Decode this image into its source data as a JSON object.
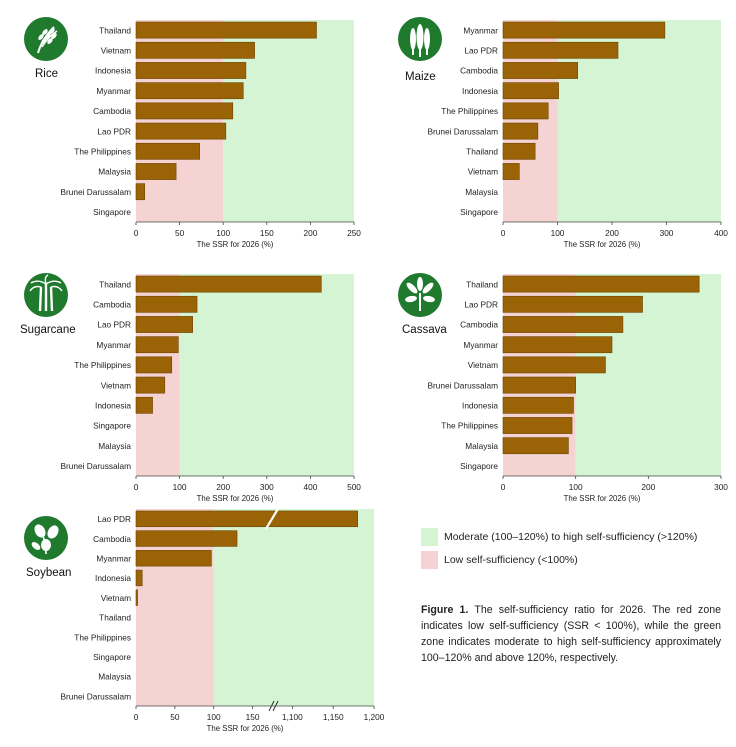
{
  "colors": {
    "bar": "#9a6306",
    "bar_stroke": "#6e4604",
    "high_zone": "#d4f4d3",
    "low_zone": "#f5d3d3",
    "icon_bg": "#1f7a2e",
    "axis": "#444444"
  },
  "legend": {
    "high": "Moderate (100–120%) to high self-sufficiency (>120%)",
    "low": "Low self-sufficiency (<100%)"
  },
  "caption": {
    "label": "Figure 1.",
    "text": " The self-sufficiency ratio for 2026. The red zone indicates low self-sufficiency (SSR < 100%), while the green zone indicates moderate to high self-sufficiency approximately 100–120% and above 120%, respectively."
  },
  "chart_data": [
    {
      "type": "bar",
      "orientation": "horizontal",
      "title": "Rice",
      "icon": "rice-icon",
      "xlabel": "The SSR for 2026 (%)",
      "xlim": [
        0,
        250
      ],
      "xticks": [
        0,
        50,
        100,
        150,
        200,
        250
      ],
      "categories": [
        "Thailand",
        "Vietnam",
        "Indonesia",
        "Myanmar",
        "Cambodia",
        "Lao PDR",
        "The Philippines",
        "Malaysia",
        "Brunei Darussalam",
        "Singapore"
      ],
      "values": [
        207,
        136,
        126,
        123,
        111,
        103,
        73,
        46,
        10,
        0
      ],
      "threshold": 100
    },
    {
      "type": "bar",
      "orientation": "horizontal",
      "title": "Maize",
      "icon": "maize-icon",
      "xlabel": "The SSR for 2026 (%)",
      "xlim": [
        0,
        400
      ],
      "xticks": [
        0,
        100,
        200,
        300,
        400
      ],
      "categories": [
        "Myanmar",
        "Lao PDR",
        "Cambodia",
        "Indonesia",
        "The Philippines",
        "Brunei Darussalam",
        "Thailand",
        "Vietnam",
        "Malaysia",
        "Singapore"
      ],
      "values": [
        297,
        211,
        137,
        102,
        83,
        64,
        59,
        30,
        0,
        0
      ],
      "threshold": 100
    },
    {
      "type": "bar",
      "orientation": "horizontal",
      "title": "Sugarcane",
      "icon": "sugarcane-icon",
      "xlabel": "The SSR for 2026 (%)",
      "xlim": [
        0,
        500
      ],
      "xticks": [
        0,
        100,
        200,
        300,
        400,
        500
      ],
      "categories": [
        "Thailand",
        "Cambodia",
        "Lao PDR",
        "Myanmar",
        "The Philippines",
        "Vietnam",
        "Indonesia",
        "Singapore",
        "Malaysia",
        "Brunei Darussalam"
      ],
      "values": [
        425,
        140,
        130,
        97,
        82,
        66,
        38,
        0,
        0,
        0
      ],
      "threshold": 100
    },
    {
      "type": "bar",
      "orientation": "horizontal",
      "title": "Cassava",
      "icon": "cassava-icon",
      "xlabel": "The SSR for 2026 (%)",
      "xlim": [
        0,
        300
      ],
      "xticks": [
        0,
        100,
        200,
        300
      ],
      "categories": [
        "Thailand",
        "Lao PDR",
        "Cambodia",
        "Myanmar",
        "Vietnam",
        "Brunei Darussalam",
        "Indonesia",
        "The Philippines",
        "Malaysia",
        "Singapore"
      ],
      "values": [
        270,
        192,
        165,
        150,
        141,
        100,
        97,
        95,
        90,
        0
      ],
      "threshold": 100
    },
    {
      "type": "bar",
      "orientation": "horizontal",
      "title": "Soybean",
      "icon": "soybean-icon",
      "xlabel": "The SSR for 2026 (%)",
      "broken_axis": true,
      "xticks": [
        0,
        50,
        100,
        150,
        1100,
        1150,
        1200
      ],
      "xtick_labels": [
        "0",
        "50",
        "100",
        "150",
        "1,100",
        "1,150",
        "1,200"
      ],
      "categories": [
        "Lao PDR",
        "Cambodia",
        "Myanmar",
        "Indonesia",
        "Vietnam",
        "Thailand",
        "The Philippines",
        "Singapore",
        "Malaysia",
        "Brunei Darussalam"
      ],
      "values": [
        1180,
        130,
        97,
        8,
        2,
        0,
        0,
        0,
        0,
        0
      ],
      "threshold": 100
    }
  ]
}
